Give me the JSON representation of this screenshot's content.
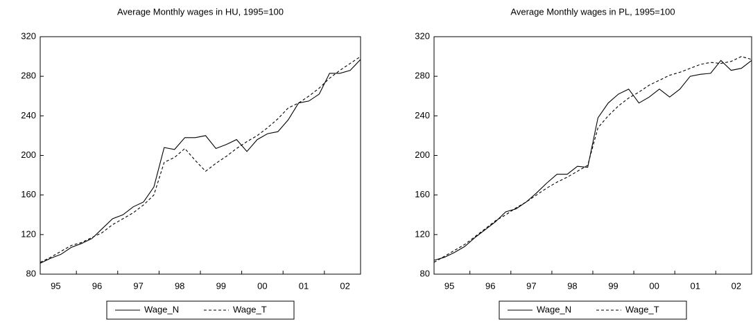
{
  "chart_data": [
    {
      "type": "line",
      "title": "Average Monthly wages in HU, 1995=100",
      "categories": [
        null,
        "95",
        null,
        null,
        null,
        "96",
        null,
        null,
        null,
        "97",
        null,
        null,
        null,
        "98",
        null,
        null,
        null,
        "99",
        null,
        null,
        null,
        "00",
        null,
        null,
        null,
        "01",
        null,
        null,
        null,
        "02",
        null,
        null
      ],
      "series": [
        {
          "name": "Wage_N",
          "color": "#000000",
          "dash": false,
          "values": [
            91,
            96,
            100,
            107,
            111,
            116,
            126,
            136,
            140,
            148,
            153,
            168,
            208,
            206,
            218,
            218,
            220,
            207,
            211,
            216,
            204,
            216,
            222,
            224,
            236,
            253,
            255,
            262,
            283,
            283,
            286,
            297
          ]
        },
        {
          "name": "Wage_T",
          "color": "#000000",
          "dash": true,
          "values": [
            92,
            97,
            103,
            109,
            112,
            117,
            122,
            130,
            136,
            142,
            150,
            160,
            193,
            198,
            207,
            195,
            184,
            192,
            199,
            207,
            214,
            220,
            228,
            237,
            248,
            253,
            260,
            268,
            278,
            286,
            293,
            300
          ]
        }
      ],
      "ylim": [
        80,
        320
      ],
      "yticks": [
        80,
        120,
        160,
        200,
        240,
        280,
        320
      ]
    },
    {
      "type": "line",
      "title": "Average Monthly wages in PL, 1995=100",
      "categories": [
        null,
        "95",
        null,
        null,
        null,
        "96",
        null,
        null,
        null,
        "97",
        null,
        null,
        null,
        "98",
        null,
        null,
        null,
        "99",
        null,
        null,
        null,
        "00",
        null,
        null,
        null,
        "01",
        null,
        null,
        null,
        "02",
        null,
        null
      ],
      "series": [
        {
          "name": "Wage_N",
          "color": "#000000",
          "dash": false,
          "values": [
            94,
            97,
            102,
            108,
            117,
            125,
            133,
            143,
            146,
            153,
            162,
            172,
            181,
            181,
            189,
            188,
            238,
            253,
            262,
            267,
            253,
            259,
            267,
            259,
            267,
            280,
            282,
            283,
            296,
            286,
            288,
            296
          ]
        },
        {
          "name": "Wage_T",
          "color": "#000000",
          "dash": true,
          "values": [
            92,
            98,
            104,
            110,
            118,
            126,
            134,
            140,
            147,
            153,
            160,
            167,
            173,
            178,
            184,
            190,
            228,
            240,
            250,
            258,
            264,
            271,
            276,
            281,
            284,
            288,
            292,
            294,
            293,
            295,
            300,
            297
          ]
        }
      ],
      "ylim": [
        80,
        320
      ],
      "yticks": [
        80,
        120,
        160,
        200,
        240,
        280,
        320
      ]
    }
  ]
}
